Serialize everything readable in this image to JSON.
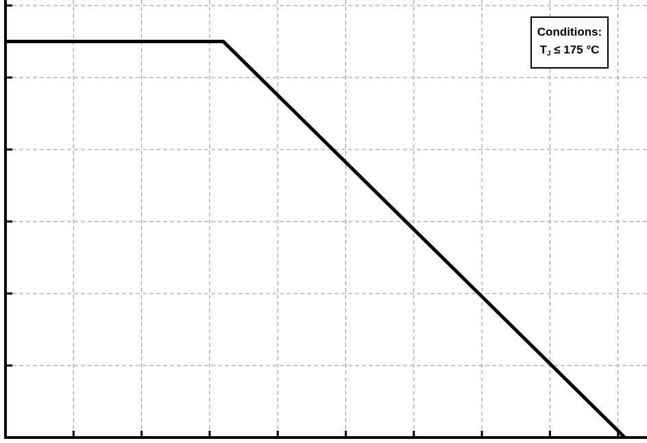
{
  "chart_data": {
    "type": "line",
    "title": "",
    "xlabel": "",
    "ylabel": "",
    "xlim": [
      0,
      9.3
    ],
    "ylim": [
      0,
      6.0
    ],
    "x_ticks": [
      0,
      1,
      2,
      3,
      4,
      5,
      6,
      7,
      8,
      9
    ],
    "y_ticks": [
      0,
      1,
      2,
      3,
      4,
      5,
      6
    ],
    "grid": true,
    "series": [
      {
        "x": [
          0,
          3.2,
          9.1
        ],
        "y": [
          5.5,
          5.5,
          0
        ]
      }
    ],
    "annotation": {
      "line1": "Conditions:",
      "line2_main": "T",
      "line2_sub": "J",
      "line2_rest": " ≤ 175 °C"
    }
  },
  "colors": {
    "line": "#000000",
    "grid": "#8f8f8f",
    "background": "#ffffff"
  }
}
